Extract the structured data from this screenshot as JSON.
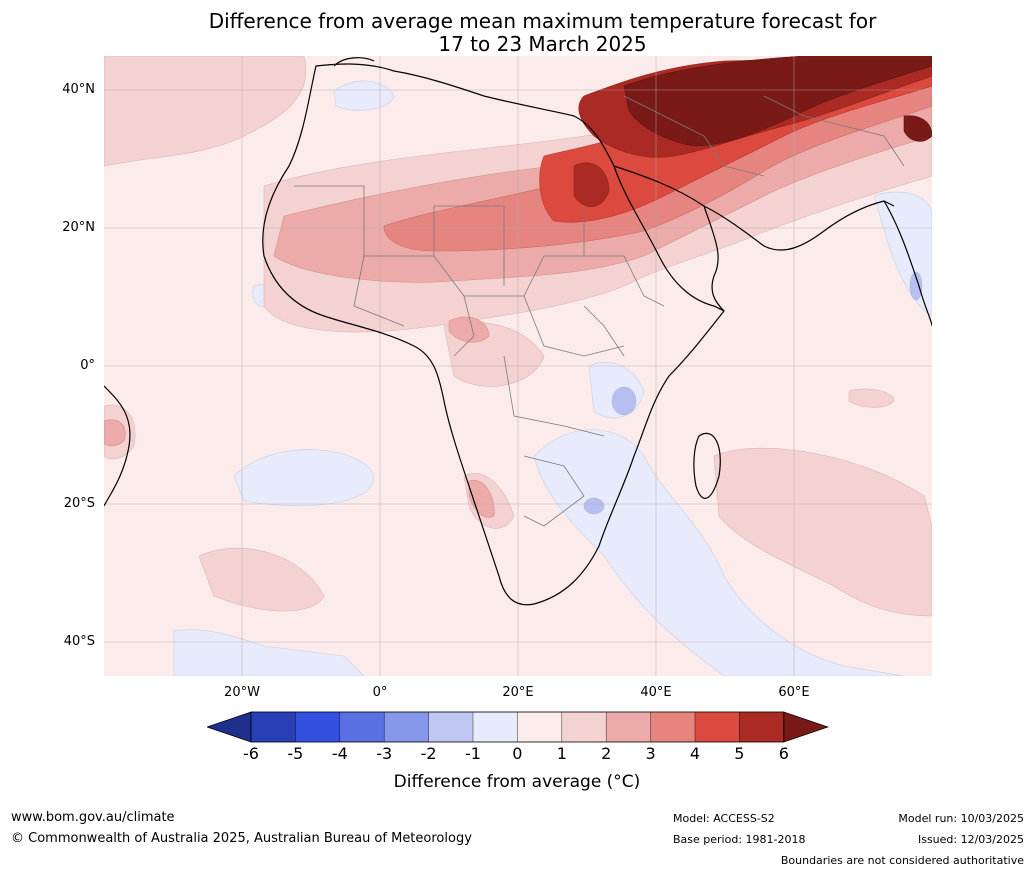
{
  "title": {
    "line1": "Difference from average mean maximum temperature forecast for",
    "line2": "17 to 23 March 2025"
  },
  "axes": {
    "lat_labels": [
      "40°N",
      "20°N",
      "0°",
      "20°S",
      "40°S"
    ],
    "lon_labels": [
      "20°W",
      "0°",
      "20°E",
      "40°E",
      "60°E"
    ]
  },
  "colorbar": {
    "ticks": [
      "-6",
      "-5",
      "-4",
      "-3",
      "-2",
      "-1",
      "0",
      "1",
      "2",
      "3",
      "4",
      "5",
      "6"
    ],
    "label": "Difference from average (°C)",
    "colors": [
      "#1e2f8c",
      "#283fb5",
      "#3350e0",
      "#5a70e3",
      "#8797ea",
      "#c0c7f3",
      "#e8ebfb",
      "#fbeceb",
      "#f4d2d1",
      "#ecaaa8",
      "#e68580",
      "#dc4a3f",
      "#ac2a24",
      "#7a1a17"
    ]
  },
  "footer": {
    "website": "www.bom.gov.au/climate",
    "copyright": "© Commonwealth of Australia 2025, Australian Bureau of Meteorology",
    "model": "Model: ACCESS-S2",
    "base_period": "Base period: 1981-2018",
    "model_run": "Model run: 10/03/2025",
    "issued": "Issued: 12/03/2025",
    "disclaimer": "Boundaries are not considered authoritative"
  }
}
